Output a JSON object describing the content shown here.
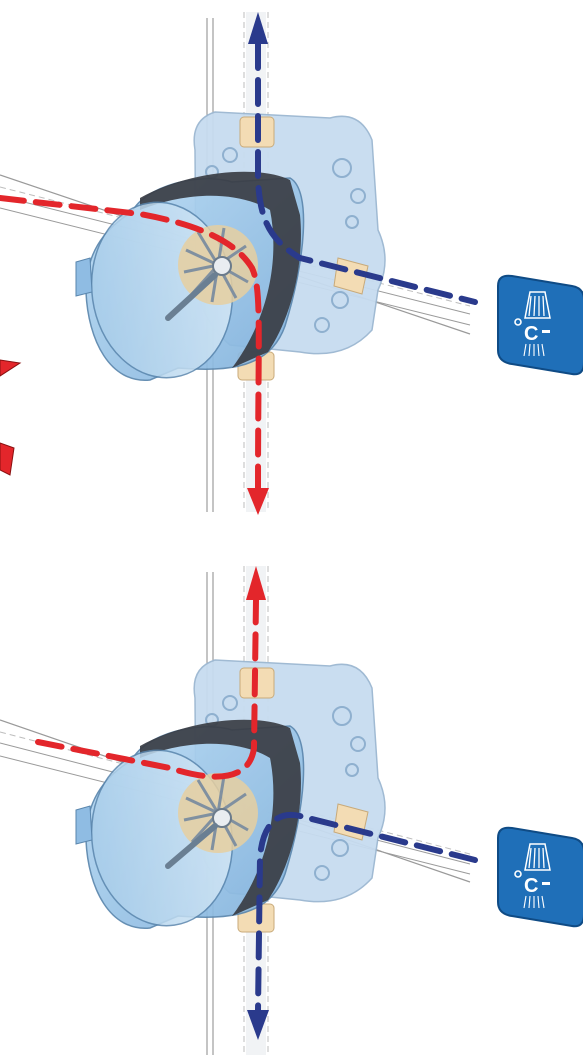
{
  "colors": {
    "hot_water": "#e3262b",
    "cold_water": "#2a3a8c",
    "cylinder_fill": "#9cc8ea",
    "cylinder_dark": "#6a9cc6",
    "band": "#3a3d44",
    "box_fill": "#c7dcf0",
    "pipe_stroke": "#8a8a8a",
    "fitting": "#f3dcb4",
    "badge": "#1f6fb8"
  },
  "icons": {
    "badge": "thermostatic-shower-icon",
    "arrow": "flow-arrow-icon"
  },
  "panels": [
    {
      "name": "flow-configuration-1",
      "hot_path": "left-to-bottom",
      "cold_path": "top-to-right"
    },
    {
      "name": "flow-configuration-2",
      "hot_path": "left-to-top",
      "cold_path": "right-to-bottom"
    }
  ]
}
